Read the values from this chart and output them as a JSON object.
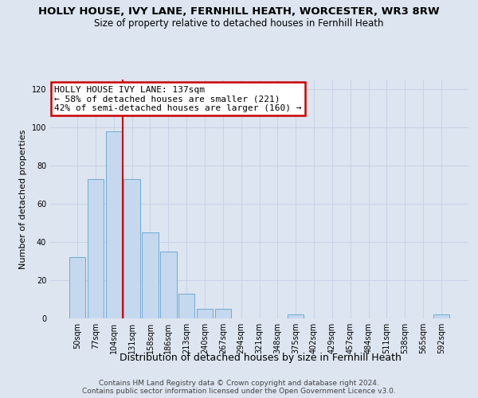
{
  "title": "HOLLY HOUSE, IVY LANE, FERNHILL HEATH, WORCESTER, WR3 8RW",
  "subtitle": "Size of property relative to detached houses in Fernhill Heath",
  "xlabel": "Distribution of detached houses by size in Fernhill Heath",
  "ylabel": "Number of detached properties",
  "categories": [
    "50sqm",
    "77sqm",
    "104sqm",
    "131sqm",
    "158sqm",
    "186sqm",
    "213sqm",
    "240sqm",
    "267sqm",
    "294sqm",
    "321sqm",
    "348sqm",
    "375sqm",
    "402sqm",
    "429sqm",
    "457sqm",
    "484sqm",
    "511sqm",
    "538sqm",
    "565sqm",
    "592sqm"
  ],
  "values": [
    32,
    73,
    98,
    73,
    45,
    35,
    13,
    5,
    5,
    0,
    0,
    0,
    2,
    0,
    0,
    0,
    0,
    0,
    0,
    0,
    2
  ],
  "bar_color": "#c5d8ee",
  "bar_edge_color": "#6eaad4",
  "annotation_title": "HOLLY HOUSE IVY LANE: 137sqm",
  "annotation_line1": "← 58% of detached houses are smaller (221)",
  "annotation_line2": "42% of semi-detached houses are larger (160) →",
  "annotation_box_facecolor": "#ffffff",
  "annotation_box_edgecolor": "#cc0000",
  "ylim_max": 125,
  "yticks": [
    0,
    20,
    40,
    60,
    80,
    100,
    120
  ],
  "grid_color": "#c8d4e8",
  "bg_color": "#dde5f0",
  "red_line_color": "#cc0000",
  "red_line_x": 2.5,
  "footer1": "Contains HM Land Registry data © Crown copyright and database right 2024.",
  "footer2": "Contains public sector information licensed under the Open Government Licence v3.0.",
  "title_fontsize": 9.5,
  "subtitle_fontsize": 8.5,
  "ylabel_fontsize": 8,
  "xlabel_fontsize": 9,
  "tick_fontsize": 7,
  "annotation_fontsize": 8,
  "footer_fontsize": 6.5
}
